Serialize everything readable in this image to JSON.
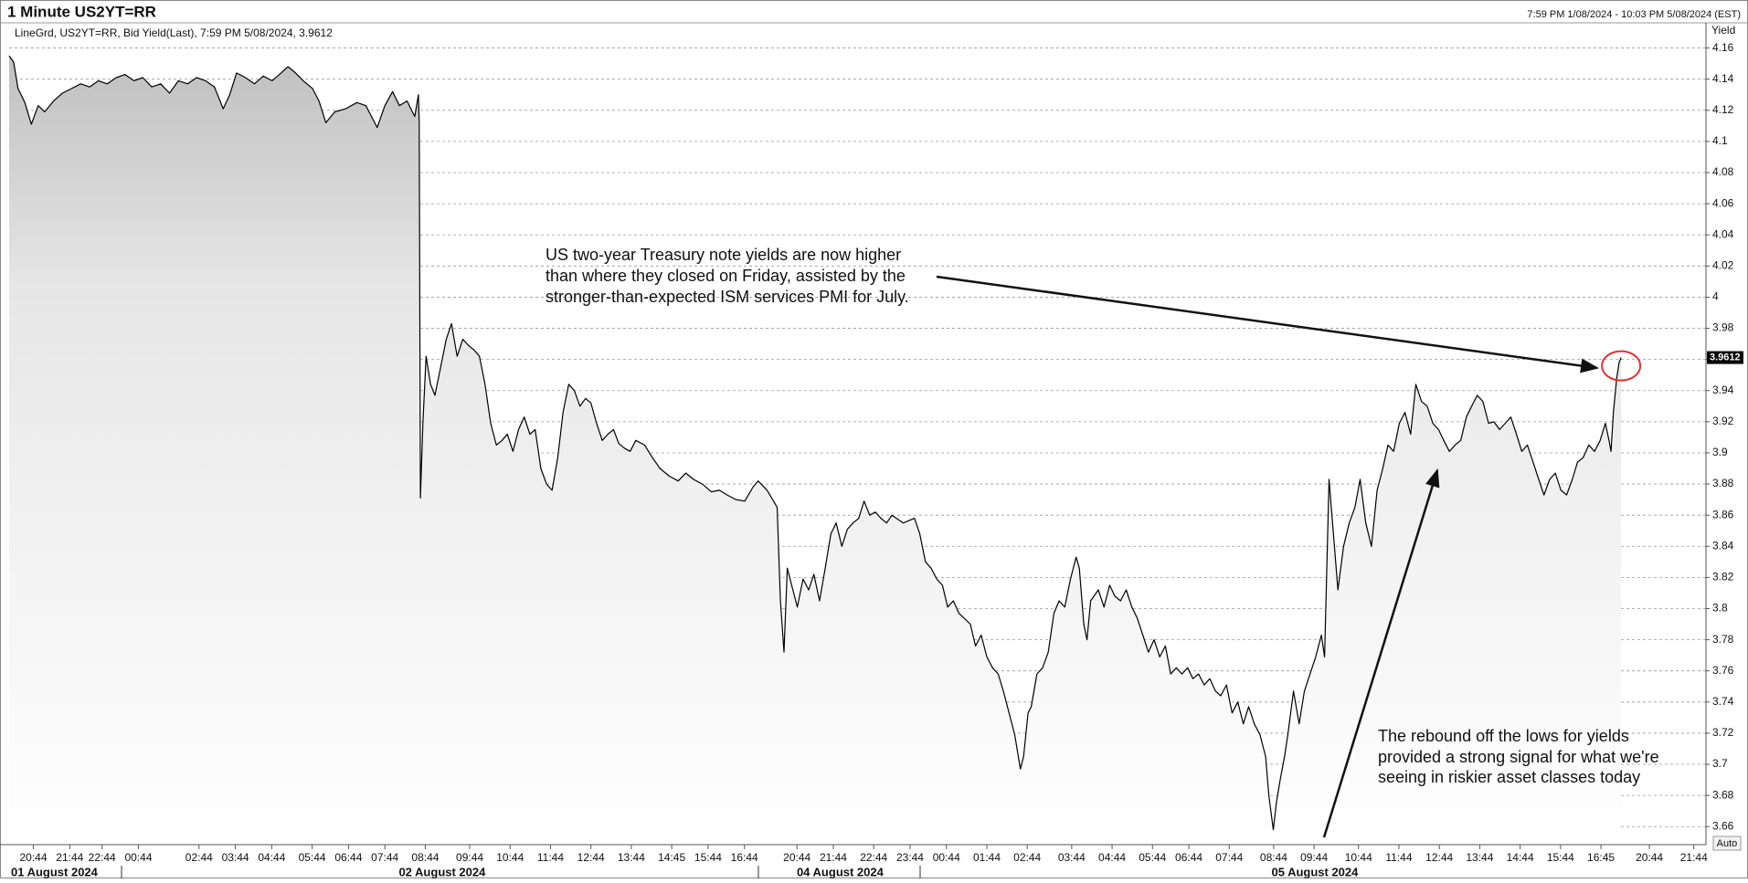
{
  "chart_data": {
    "type": "line",
    "title": "1 Minute US2YT=RR",
    "time_range": "7:59 PM 1/08/2024 - 10:03 PM 5/08/2024 (EST)",
    "legend_text": "LineGrd, US2YT=RR, Bid Yield(Last), 7:59 PM 5/08/2024, 3.9612",
    "y_label": "Yield",
    "auto_button": "Auto",
    "color": "#000000",
    "grid": true,
    "xlim": [
      0,
      42
    ],
    "ylim": [
      3.649,
      4.175
    ],
    "yticks": [
      3.66,
      3.68,
      3.7,
      3.72,
      3.74,
      3.76,
      3.78,
      3.8,
      3.82,
      3.84,
      3.86,
      3.88,
      3.9,
      3.92,
      3.94,
      3.96,
      3.98,
      4,
      4.02,
      4.04,
      4.06,
      4.08,
      4.1,
      4.12,
      4.14,
      4.16
    ],
    "xticks": [
      {
        "value": 0.6,
        "label": "20:44"
      },
      {
        "value": 1.5,
        "label": "21:44"
      },
      {
        "value": 2.3,
        "label": "22:44"
      },
      {
        "value": 3.2,
        "label": "00:44"
      },
      {
        "value": 4.7,
        "label": "02:44"
      },
      {
        "value": 5.6,
        "label": "03:44"
      },
      {
        "value": 6.5,
        "label": "04:44"
      },
      {
        "value": 7.5,
        "label": "05:44"
      },
      {
        "value": 8.4,
        "label": "06:44"
      },
      {
        "value": 9.3,
        "label": "07:44"
      },
      {
        "value": 10.3,
        "label": "08:44"
      },
      {
        "value": 11.4,
        "label": "09:44"
      },
      {
        "value": 12.4,
        "label": "10:44"
      },
      {
        "value": 13.4,
        "label": "11:44"
      },
      {
        "value": 14.4,
        "label": "12:44"
      },
      {
        "value": 15.4,
        "label": "13:44"
      },
      {
        "value": 16.4,
        "label": "14:45"
      },
      {
        "value": 17.3,
        "label": "15:44"
      },
      {
        "value": 18.2,
        "label": "16:44"
      },
      {
        "value": 19.5,
        "label": "20:44"
      },
      {
        "value": 20.4,
        "label": "21:44"
      },
      {
        "value": 21.4,
        "label": "22:44"
      },
      {
        "value": 22.3,
        "label": "23:44"
      },
      {
        "value": 23.2,
        "label": "00:44"
      },
      {
        "value": 24.2,
        "label": "01:44"
      },
      {
        "value": 25.2,
        "label": "02:44"
      },
      {
        "value": 26.3,
        "label": "03:44"
      },
      {
        "value": 27.3,
        "label": "04:44"
      },
      {
        "value": 28.3,
        "label": "05:44"
      },
      {
        "value": 29.2,
        "label": "06:44"
      },
      {
        "value": 30.2,
        "label": "07:44"
      },
      {
        "value": 31.3,
        "label": "08:44"
      },
      {
        "value": 32.3,
        "label": "09:44"
      },
      {
        "value": 33.4,
        "label": "10:44"
      },
      {
        "value": 34.4,
        "label": "11:44"
      },
      {
        "value": 35.4,
        "label": "12:44"
      },
      {
        "value": 36.4,
        "label": "13:44"
      },
      {
        "value": 37.4,
        "label": "14:44"
      },
      {
        "value": 38.4,
        "label": "15:44"
      },
      {
        "value": 39.4,
        "label": "16:45"
      },
      {
        "value": 40.6,
        "label": "20:44"
      },
      {
        "value": 41.7,
        "label": "21:44"
      }
    ],
    "date_ticks": [
      {
        "value": 0,
        "label": "01 August 2024"
      },
      {
        "value": 9.6,
        "label": "02 August 2024"
      },
      {
        "value": 19.45,
        "label": "04 August 2024"
      },
      {
        "value": 31.2,
        "label": "05 August 2024"
      }
    ],
    "x": [
      0,
      0.11,
      0.22,
      0.39,
      0.55,
      0.72,
      0.88,
      1.1,
      1.32,
      1.55,
      1.77,
      1.99,
      2.21,
      2.43,
      2.65,
      2.87,
      3.09,
      3.31,
      3.53,
      3.75,
      3.97,
      4.19,
      4.42,
      4.64,
      4.86,
      5.08,
      5.3,
      5.46,
      5.63,
      5.85,
      6.07,
      6.29,
      6.51,
      6.73,
      6.9,
      7.09,
      7.28,
      7.51,
      7.67,
      7.84,
      8.06,
      8.33,
      8.61,
      8.83,
      9.11,
      9.3,
      9.49,
      9.66,
      9.85,
      10.04,
      10.13,
      10.15,
      10.18,
      10.24,
      10.32,
      10.43,
      10.54,
      10.68,
      10.82,
      10.95,
      11.09,
      11.23,
      11.37,
      11.51,
      11.64,
      11.78,
      11.92,
      12.06,
      12.2,
      12.33,
      12.47,
      12.61,
      12.75,
      12.89,
      13.02,
      13.16,
      13.3,
      13.44,
      13.58,
      13.71,
      13.85,
      13.99,
      14.13,
      14.27,
      14.4,
      14.54,
      14.68,
      14.82,
      14.96,
      15.09,
      15.23,
      15.37,
      15.51,
      15.73,
      15.92,
      16.11,
      16.34,
      16.56,
      16.75,
      16.94,
      17.16,
      17.38,
      17.58,
      17.77,
      17.99,
      18.21,
      18.41,
      18.54,
      18.76,
      18.9,
      19.01,
      19.09,
      19.18,
      19.26,
      19.37,
      19.51,
      19.65,
      19.79,
      19.92,
      20.06,
      20.2,
      20.34,
      20.47,
      20.61,
      20.75,
      20.89,
      21.03,
      21.16,
      21.3,
      21.44,
      21.58,
      21.72,
      21.85,
      22.13,
      22.41,
      22.54,
      22.68,
      22.82,
      22.96,
      23.1,
      23.23,
      23.37,
      23.51,
      23.79,
      23.92,
      24.06,
      24.2,
      24.34,
      24.48,
      24.61,
      24.75,
      24.89,
      25.03,
      25.11,
      25.22,
      25.3,
      25.44,
      25.58,
      25.72,
      25.86,
      25.99,
      26.13,
      26.27,
      26.41,
      26.49,
      26.6,
      26.68,
      26.77,
      26.96,
      27.1,
      27.24,
      27.37,
      27.51,
      27.65,
      27.79,
      27.92,
      28.06,
      28.2,
      28.34,
      28.48,
      28.62,
      28.75,
      28.89,
      29.03,
      29.17,
      29.3,
      29.44,
      29.58,
      29.72,
      29.86,
      29.99,
      30.13,
      30.27,
      30.41,
      30.55,
      30.68,
      30.82,
      30.96,
      31.1,
      31.18,
      31.29,
      31.37,
      31.46,
      31.57,
      31.65,
      31.79,
      31.93,
      32.06,
      32.2,
      32.34,
      32.48,
      32.56,
      32.67,
      32.78,
      32.89,
      33.03,
      33.17,
      33.31,
      33.44,
      33.58,
      33.72,
      33.86,
      34.0,
      34.13,
      34.27,
      34.41,
      34.55,
      34.69,
      34.82,
      34.96,
      35.1,
      35.24,
      35.38,
      35.51,
      35.65,
      35.79,
      35.93,
      36.07,
      36.2,
      36.34,
      36.48,
      36.62,
      36.75,
      36.89,
      37.03,
      37.17,
      37.31,
      37.44,
      37.58,
      37.72,
      37.86,
      37.99,
      38.13,
      38.27,
      38.41,
      38.55,
      38.69,
      38.82,
      38.96,
      39.1,
      39.24,
      39.38,
      39.51,
      39.6,
      39.65,
      39.71,
      39.79,
      39.85,
      39.9
    ],
    "values": [
      4.155,
      4.151,
      4.134,
      4.125,
      4.111,
      4.123,
      4.119,
      4.126,
      4.131,
      4.134,
      4.137,
      4.135,
      4.139,
      4.137,
      4.141,
      4.143,
      4.139,
      4.141,
      4.135,
      4.137,
      4.131,
      4.139,
      4.137,
      4.141,
      4.139,
      4.135,
      4.121,
      4.13,
      4.144,
      4.141,
      4.137,
      4.142,
      4.139,
      4.144,
      4.148,
      4.144,
      4.139,
      4.134,
      4.126,
      4.112,
      4.119,
      4.121,
      4.125,
      4.123,
      4.109,
      4.123,
      4.132,
      4.123,
      4.126,
      4.116,
      4.13,
      4.112,
      3.871,
      3.919,
      3.962,
      3.944,
      3.937,
      3.955,
      3.973,
      3.983,
      3.962,
      3.973,
      3.969,
      3.966,
      3.962,
      3.944,
      3.919,
      3.905,
      3.908,
      3.912,
      3.901,
      3.915,
      3.923,
      3.912,
      3.915,
      3.89,
      3.88,
      3.876,
      3.897,
      3.926,
      3.944,
      3.94,
      3.93,
      3.935,
      3.932,
      3.919,
      3.908,
      3.912,
      3.915,
      3.906,
      3.903,
      3.901,
      3.908,
      3.905,
      3.897,
      3.89,
      3.885,
      3.882,
      3.887,
      3.883,
      3.88,
      3.875,
      3.876,
      3.873,
      3.87,
      3.869,
      3.878,
      3.882,
      3.876,
      3.87,
      3.865,
      3.805,
      3.772,
      3.826,
      3.815,
      3.801,
      3.819,
      3.812,
      3.822,
      3.805,
      3.826,
      3.848,
      3.855,
      3.84,
      3.851,
      3.855,
      3.858,
      3.869,
      3.86,
      3.862,
      3.858,
      3.855,
      3.86,
      3.855,
      3.858,
      3.848,
      3.83,
      3.826,
      3.819,
      3.815,
      3.801,
      3.805,
      3.797,
      3.79,
      3.776,
      3.783,
      3.769,
      3.762,
      3.758,
      3.747,
      3.733,
      3.719,
      3.697,
      3.705,
      3.733,
      3.737,
      3.758,
      3.762,
      3.772,
      3.797,
      3.805,
      3.801,
      3.819,
      3.833,
      3.826,
      3.79,
      3.78,
      3.805,
      3.812,
      3.801,
      3.815,
      3.808,
      3.805,
      3.812,
      3.801,
      3.794,
      3.783,
      3.772,
      3.78,
      3.769,
      3.776,
      3.758,
      3.762,
      3.758,
      3.762,
      3.755,
      3.758,
      3.751,
      3.755,
      3.747,
      3.744,
      3.751,
      3.733,
      3.74,
      3.726,
      3.737,
      3.726,
      3.719,
      3.705,
      3.68,
      3.658,
      3.676,
      3.69,
      3.705,
      3.719,
      3.747,
      3.726,
      3.747,
      3.758,
      3.769,
      3.783,
      3.769,
      3.883,
      3.848,
      3.812,
      3.84,
      3.855,
      3.865,
      3.883,
      3.855,
      3.84,
      3.876,
      3.89,
      3.905,
      3.901,
      3.919,
      3.926,
      3.912,
      3.944,
      3.933,
      3.93,
      3.919,
      3.915,
      3.908,
      3.901,
      3.905,
      3.908,
      3.923,
      3.93,
      3.937,
      3.933,
      3.919,
      3.92,
      3.915,
      3.919,
      3.923,
      3.912,
      3.901,
      3.905,
      3.894,
      3.883,
      3.873,
      3.883,
      3.887,
      3.876,
      3.873,
      3.883,
      3.894,
      3.897,
      3.905,
      3.901,
      3.908,
      3.919,
      3.908,
      3.901,
      3.926,
      3.948,
      3.958,
      3.9612
    ],
    "annotations": [
      {
        "lines": [
          "US two-year Treasury note yields are now higher",
          "than where they closed on Friday, assisted by the",
          "stronger-than-expected ISM services PMI for July."
        ]
      },
      {
        "lines": [
          "The rebound off the lows for yields",
          "provided a strong signal for what we're",
          "seeing in riskier asset classes today"
        ]
      }
    ]
  }
}
